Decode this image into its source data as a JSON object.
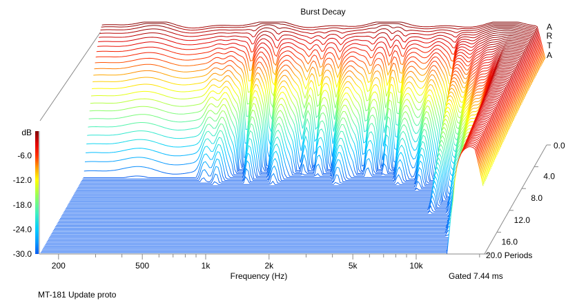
{
  "chart_data": {
    "type": "waterfall",
    "title": "Burst Decay",
    "brand_letters": [
      "A",
      "R",
      "T",
      "A"
    ],
    "xlabel": "Frequency (Hz)",
    "xscale": "log",
    "xlim_hz": [
      163,
      20800
    ],
    "x_ticks": [
      {
        "value": 200,
        "label": "200"
      },
      {
        "value": 500,
        "label": "500"
      },
      {
        "value": 1000,
        "label": "1k"
      },
      {
        "value": 2000,
        "label": "2k"
      },
      {
        "value": 5000,
        "label": "5k"
      },
      {
        "value": 10000,
        "label": "10k"
      }
    ],
    "x_minor_ticks": [
      300,
      400,
      600,
      700,
      800,
      900,
      3000,
      4000,
      6000,
      7000,
      8000,
      9000,
      20000
    ],
    "zlabel_unit": "dB",
    "zlim_db": [
      -30,
      0
    ],
    "colorbar_ticks": [
      {
        "value": -6,
        "label": "-6.0"
      },
      {
        "value": -12,
        "label": "-12.0"
      },
      {
        "value": -18,
        "label": "-18.0"
      },
      {
        "value": -24,
        "label": "-24.0"
      },
      {
        "value": -30,
        "label": "-30.0"
      }
    ],
    "colormap": [
      {
        "db": -30,
        "color": "#0a5cf0"
      },
      {
        "db": -27,
        "color": "#0a9cff"
      },
      {
        "db": -24,
        "color": "#00ccff"
      },
      {
        "db": -20,
        "color": "#40f0c0"
      },
      {
        "db": -16,
        "color": "#90ff60"
      },
      {
        "db": -12,
        "color": "#ffff00"
      },
      {
        "db": -9,
        "color": "#ffa000"
      },
      {
        "db": -6,
        "color": "#ff3000"
      },
      {
        "db": -3,
        "color": "#e00000"
      },
      {
        "db": 0,
        "color": "#800000"
      }
    ],
    "ylabel": "Periods",
    "ylim_periods": [
      0,
      20
    ],
    "period_ticks": [
      {
        "value": 0,
        "label": "0.0"
      },
      {
        "value": 4,
        "label": "4.0"
      },
      {
        "value": 8,
        "label": "8.0"
      },
      {
        "value": 12,
        "label": "12.0"
      },
      {
        "value": 16,
        "label": "16.0"
      },
      {
        "value": 20,
        "label": "20.0 Periods"
      }
    ],
    "slice_step_periods": 0.25,
    "base_decay_periods": 6,
    "decay_features_hz_periods_width": [
      [
        620,
        1.0,
        0.03
      ],
      [
        720,
        1.5,
        0.03
      ],
      [
        880,
        -2.5,
        0.02
      ],
      [
        1000,
        1.2,
        0.02
      ],
      [
        1150,
        -2.2,
        0.02
      ],
      [
        1350,
        1.5,
        0.03
      ],
      [
        1650,
        -1.5,
        0.02
      ],
      [
        1900,
        -2.0,
        0.02
      ],
      [
        2300,
        -2.0,
        0.02
      ],
      [
        2700,
        1.5,
        0.03
      ],
      [
        3300,
        -1.5,
        0.02
      ],
      [
        4000,
        -2.2,
        0.02
      ],
      [
        4600,
        -2.0,
        0.02
      ],
      [
        5300,
        1.5,
        0.03
      ],
      [
        6800,
        2.5,
        0.03
      ],
      [
        8100,
        -3.0,
        0.02
      ],
      [
        9000,
        7.0,
        0.04
      ],
      [
        10800,
        5.0,
        0.03
      ],
      [
        12300,
        8.0,
        0.04
      ],
      [
        17500,
        40.0,
        0.09
      ]
    ],
    "annotation": "Gated 7.44 ms"
  },
  "footer": "MT-181 Update proto"
}
